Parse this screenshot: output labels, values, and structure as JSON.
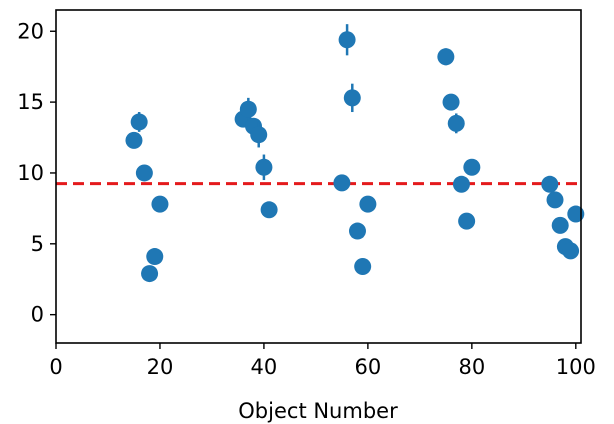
{
  "chart_data": {
    "type": "scatter",
    "title": "",
    "xlabel": "Object Number",
    "ylabel": "",
    "xlim": [
      0,
      101
    ],
    "ylim": [
      -2,
      21.5
    ],
    "x_ticks": [
      0,
      20,
      40,
      60,
      80,
      100
    ],
    "y_ticks": [
      0,
      5,
      10,
      15,
      20
    ],
    "x_tick_labels": [
      "0",
      "20",
      "40",
      "60",
      "80",
      "100"
    ],
    "y_tick_labels": [
      "0",
      "5",
      "10",
      "15",
      "20"
    ],
    "grid": false,
    "legend": "none",
    "colors": {
      "points": "#1f77b4",
      "reference_line": "#e41a1c",
      "axes": "#000000"
    },
    "series": [
      {
        "x": [
          15,
          16,
          17,
          18,
          19,
          20,
          36,
          37,
          38,
          39,
          40,
          41,
          55,
          56,
          57,
          58,
          59,
          60,
          75,
          76,
          77,
          78,
          79,
          80,
          95,
          96,
          97,
          98,
          99,
          100
        ],
        "y": [
          12.3,
          13.6,
          10.0,
          2.9,
          4.1,
          7.8,
          13.8,
          14.5,
          13.3,
          12.7,
          10.4,
          7.4,
          9.3,
          19.4,
          15.3,
          5.9,
          3.4,
          7.8,
          18.2,
          15.0,
          13.5,
          9.2,
          6.6,
          10.4,
          9.2,
          8.1,
          6.3,
          4.8,
          4.5,
          7.1
        ],
        "yerr": [
          0.4,
          0.7,
          0.3,
          0.2,
          0.2,
          0.3,
          0.4,
          0.8,
          0.5,
          0.9,
          0.9,
          0.2,
          0.3,
          1.1,
          1.0,
          0.2,
          0.2,
          0.3,
          0.6,
          0.5,
          0.7,
          0.5,
          0.3,
          0.3,
          0.3,
          0.3,
          0.3,
          0.2,
          0.2,
          0.3
        ]
      }
    ],
    "reference_line": {
      "y": 9.25,
      "style": "dashed"
    }
  }
}
